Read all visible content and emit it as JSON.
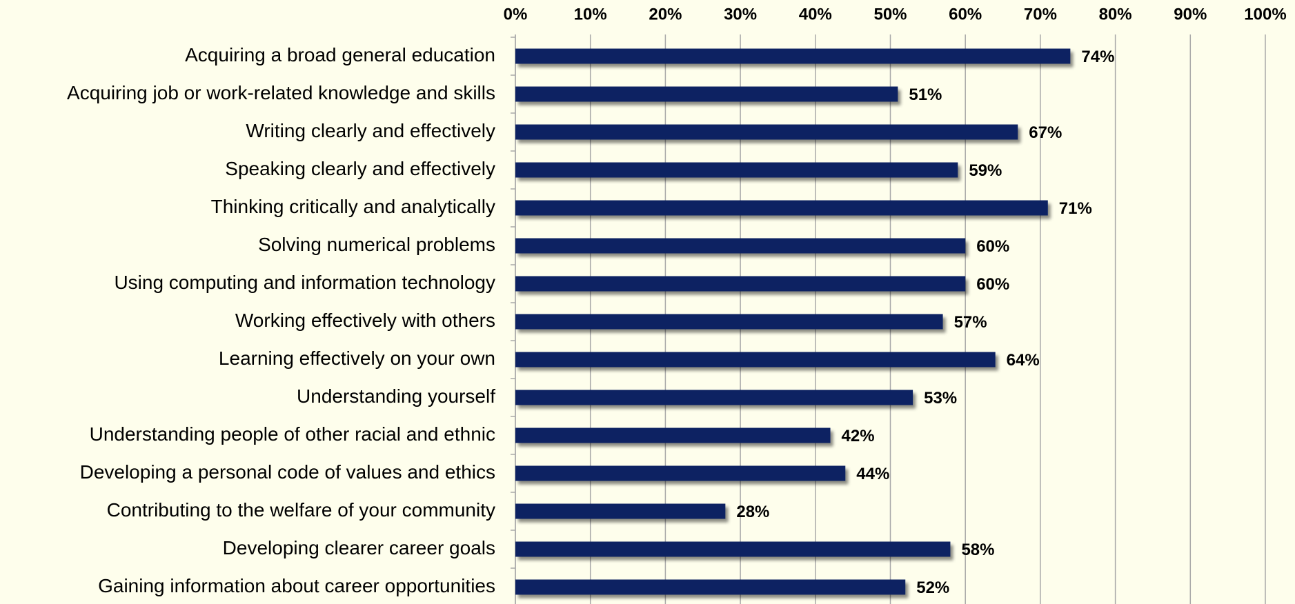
{
  "chart_data": {
    "type": "bar",
    "orientation": "horizontal",
    "categories": [
      "Acquiring a broad general education",
      "Acquiring job or work-related knowledge and skills",
      "Writing clearly and effectively",
      "Speaking clearly and effectively",
      "Thinking critically and analytically",
      "Solving numerical problems",
      "Using computing and information technology",
      "Working effectively with others",
      "Learning effectively on your own",
      "Understanding yourself",
      "Understanding people of other racial and ethnic",
      "Developing a personal code of values and ethics",
      "Contributing to the welfare of your community",
      "Developing clearer career goals",
      "Gaining information about career opportunities"
    ],
    "values": [
      74,
      51,
      67,
      59,
      71,
      60,
      60,
      57,
      64,
      53,
      42,
      44,
      28,
      58,
      52
    ],
    "value_labels": [
      "74%",
      "51%",
      "67%",
      "59%",
      "71%",
      "60%",
      "60%",
      "57%",
      "64%",
      "53%",
      "42%",
      "44%",
      "28%",
      "58%",
      "52%"
    ],
    "color": "#0c2262",
    "xlim": [
      0,
      100
    ],
    "xticks": [
      {
        "value": 0,
        "label": "0%"
      },
      {
        "value": 10,
        "label": "10%"
      },
      {
        "value": 20,
        "label": "20%"
      },
      {
        "value": 30,
        "label": "30%"
      },
      {
        "value": 40,
        "label": "40%"
      },
      {
        "value": 50,
        "label": "50%"
      },
      {
        "value": 60,
        "label": "60%"
      },
      {
        "value": 70,
        "label": "70%"
      },
      {
        "value": 80,
        "label": "80%"
      },
      {
        "value": 90,
        "label": "90%"
      },
      {
        "value": 100,
        "label": "100%"
      }
    ],
    "grid": true
  }
}
